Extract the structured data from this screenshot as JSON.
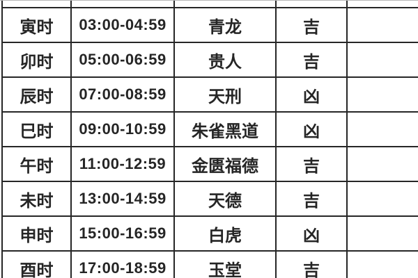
{
  "page": {
    "background_color": "#ffffff",
    "border_color": "#262626",
    "text_color": "#252525"
  },
  "table": {
    "description_columns": [
      "hour-name",
      "time-range",
      "star-name",
      "luck-flag",
      "extra"
    ],
    "rows": [
      {
        "hour": "寅时",
        "time": "03:00-04:59",
        "star": "青龙",
        "luck": "吉",
        "extra": ""
      },
      {
        "hour": "卯时",
        "time": "05:00-06:59",
        "star": "贵人",
        "luck": "吉",
        "extra": ""
      },
      {
        "hour": "辰时",
        "time": "07:00-08:59",
        "star": "天刑",
        "luck": "凶",
        "extra": ""
      },
      {
        "hour": "巳时",
        "time": "09:00-10:59",
        "star": "朱雀黑道",
        "luck": "凶",
        "extra": ""
      },
      {
        "hour": "午时",
        "time": "11:00-12:59",
        "star": "金匮福德",
        "luck": "吉",
        "extra": ""
      },
      {
        "hour": "未时",
        "time": "13:00-14:59",
        "star": "天德",
        "luck": "吉",
        "extra": ""
      },
      {
        "hour": "申时",
        "time": "15:00-16:59",
        "star": "白虎",
        "luck": "凶",
        "extra": ""
      },
      {
        "hour": "酉时",
        "time": "17:00-18:59",
        "star": "玉堂",
        "luck": "吉",
        "extra": ""
      }
    ]
  }
}
